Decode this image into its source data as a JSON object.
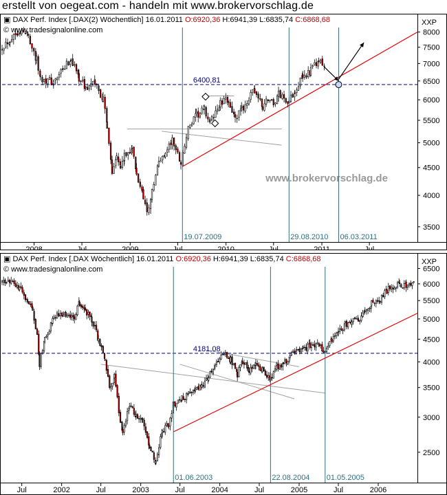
{
  "header": {
    "text": "erstellt von oegeat.com - handeln mit www.brokervorschlag.de"
  },
  "watermark": "www.brokervorschlag.de",
  "colors": {
    "up_candle": "#ffffff",
    "down_candle": "#c00000",
    "trendline": "#e00000",
    "vertical_lines": "#2e6f80",
    "reference_line": "#000080",
    "channel_lines": "#a0a0a0",
    "ohlc_red": "#c00000"
  },
  "chart_data": [
    {
      "type": "candlestick",
      "title": {
        "name": "DAX Perf. Index [.DAX(2) Wöchentlich] 16.01.2011",
        "open": "O:6920,36",
        "high": "H:6941,39",
        "low": "L:6835,74",
        "close": "C:6868,68"
      },
      "source": "www.tradesignalonline.com",
      "y_unit": "XXP",
      "y_scale": "log",
      "ylim": [
        3300,
        8300
      ],
      "y_ticks": [
        3500,
        4000,
        4500,
        5000,
        5500,
        6000,
        6500,
        7000,
        7500,
        8000
      ],
      "x_range": [
        "2007-09-01",
        "2011-12-31"
      ],
      "x_ticks": [
        {
          "date": "2008-01-01",
          "label": "2008"
        },
        {
          "date": "2008-07-01",
          "label": "Jul"
        },
        {
          "date": "2009-01-01",
          "label": "2009"
        },
        {
          "date": "2009-07-01",
          "label": "Jul"
        },
        {
          "date": "2010-01-01",
          "label": "2010"
        },
        {
          "date": "2010-07-01",
          "label": "Jul"
        },
        {
          "date": "2011-01-01",
          "label": "2011"
        },
        {
          "date": "2011-07-01",
          "label": "Jul"
        }
      ],
      "price_path": [
        [
          "2007-09-01",
          7550
        ],
        [
          "2007-10-01",
          7750
        ],
        [
          "2007-11-01",
          8050
        ],
        [
          "2007-12-10",
          7900
        ],
        [
          "2008-01-10",
          7100
        ],
        [
          "2008-01-25",
          6600
        ],
        [
          "2008-03-15",
          6450
        ],
        [
          "2008-04-20",
          6800
        ],
        [
          "2008-05-20",
          7150
        ],
        [
          "2008-06-20",
          6600
        ],
        [
          "2008-07-15",
          6300
        ],
        [
          "2008-08-20",
          6450
        ],
        [
          "2008-09-20",
          6000
        ],
        [
          "2008-10-05",
          5400
        ],
        [
          "2008-10-24",
          4400
        ],
        [
          "2008-11-10",
          4800
        ],
        [
          "2008-11-25",
          4500
        ],
        [
          "2008-12-10",
          4700
        ],
        [
          "2009-01-08",
          4900
        ],
        [
          "2009-01-25",
          4350
        ],
        [
          "2009-02-20",
          4000
        ],
        [
          "2009-03-06",
          3700
        ],
        [
          "2009-03-25",
          4050
        ],
        [
          "2009-04-20",
          4600
        ],
        [
          "2009-05-15",
          4800
        ],
        [
          "2009-06-10",
          5050
        ],
        [
          "2009-07-13",
          4600
        ],
        [
          "2009-08-10",
          5300
        ],
        [
          "2009-09-10",
          5600
        ],
        [
          "2009-10-10",
          5750
        ],
        [
          "2009-11-01",
          5450
        ],
        [
          "2009-12-10",
          5900
        ],
        [
          "2010-01-10",
          6000
        ],
        [
          "2010-02-05",
          5500
        ],
        [
          "2010-03-01",
          5750
        ],
        [
          "2010-04-20",
          6250
        ],
        [
          "2010-05-20",
          5800
        ],
        [
          "2010-06-10",
          6050
        ],
        [
          "2010-07-01",
          5900
        ],
        [
          "2010-07-20",
          6150
        ],
        [
          "2010-08-29",
          5950
        ],
        [
          "2010-09-20",
          6250
        ],
        [
          "2010-10-20",
          6600
        ],
        [
          "2010-11-20",
          6800
        ],
        [
          "2010-12-20",
          7050
        ],
        [
          "2011-01-16",
          6870
        ]
      ],
      "reference_line": {
        "value": 6400.81,
        "label": "6400,81"
      },
      "vertical_markers": [
        {
          "date": "2009-07-19",
          "label": "19.07.2009"
        },
        {
          "date": "2010-08-29",
          "label": "29.08.2010"
        },
        {
          "date": "2011-03-06",
          "label": "06.03.2011"
        }
      ],
      "trendline": {
        "from": [
          "2009-07-19",
          4520
        ],
        "to": [
          "2011-12-31",
          8000
        ]
      },
      "channel_lines": [
        {
          "from": [
            "2008-12-20",
            5300
          ],
          "to": [
            "2010-08-01",
            5300
          ]
        },
        {
          "from": [
            "2009-05-01",
            5250
          ],
          "to": [
            "2010-08-01",
            4950
          ]
        },
        {
          "from": [
            "2009-10-01",
            6100
          ],
          "to": [
            "2010-02-01",
            6100
          ]
        }
      ],
      "markers": [
        {
          "date": "2009-10-15",
          "value": 6080,
          "shape": "diamond"
        },
        {
          "date": "2009-11-20",
          "value": 5430,
          "shape": "diamond"
        },
        {
          "date": "2011-03-06",
          "value": 6400,
          "shape": "circle"
        }
      ],
      "arrows": [
        {
          "from": [
            "2011-01-10",
            6900
          ],
          "to": [
            "2011-03-06",
            6500
          ]
        },
        {
          "from": [
            "2011-03-06",
            6550
          ],
          "to": [
            "2011-06-10",
            7650
          ]
        }
      ]
    },
    {
      "type": "candlestick",
      "title": {
        "name": "DAX Perf. Index [.DAX Wöchentlich] 16.01.2011",
        "open": "O:6920,36",
        "high": "H:6941,39",
        "low": "L:6835,74",
        "close": "C:6868,68"
      },
      "source": "www.tradesignalonline.com",
      "y_unit": "XXP",
      "y_scale": "log",
      "ylim": [
        2150,
        6700
      ],
      "y_ticks": [
        2500,
        3000,
        3500,
        4000,
        4500,
        5000,
        5500,
        6000,
        6500
      ],
      "x_range": [
        "2001-04-01",
        "2006-07-01"
      ],
      "x_ticks": [
        {
          "date": "2001-07-01",
          "label": "Jul"
        },
        {
          "date": "2002-01-01",
          "label": "2002"
        },
        {
          "date": "2002-07-01",
          "label": "Jul"
        },
        {
          "date": "2003-01-01",
          "label": "2003"
        },
        {
          "date": "2003-07-01",
          "label": "Jul"
        },
        {
          "date": "2004-01-01",
          "label": "2004"
        },
        {
          "date": "2004-07-01",
          "label": "Jul"
        },
        {
          "date": "2005-01-01",
          "label": "2005"
        },
        {
          "date": "2005-07-01",
          "label": "Jul"
        },
        {
          "date": "2006-01-01",
          "label": "2006"
        }
      ],
      "price_path": [
        [
          "2001-04-01",
          6050
        ],
        [
          "2001-05-20",
          6100
        ],
        [
          "2001-06-20",
          5900
        ],
        [
          "2001-07-20",
          5600
        ],
        [
          "2001-08-20",
          5200
        ],
        [
          "2001-09-10",
          4600
        ],
        [
          "2001-09-21",
          3950
        ],
        [
          "2001-10-15",
          4500
        ],
        [
          "2001-11-20",
          4950
        ],
        [
          "2001-12-20",
          5150
        ],
        [
          "2002-01-20",
          5100
        ],
        [
          "2002-03-01",
          5000
        ],
        [
          "2002-03-25",
          5450
        ],
        [
          "2002-04-20",
          5200
        ],
        [
          "2002-05-20",
          5000
        ],
        [
          "2002-06-20",
          4500
        ],
        [
          "2002-07-20",
          4000
        ],
        [
          "2002-08-10",
          3500
        ],
        [
          "2002-09-01",
          3700
        ],
        [
          "2002-09-30",
          2900
        ],
        [
          "2002-10-10",
          2750
        ],
        [
          "2002-11-10",
          3200
        ],
        [
          "2002-12-10",
          3000
        ],
        [
          "2003-01-10",
          2950
        ],
        [
          "2003-02-10",
          2600
        ],
        [
          "2003-03-12",
          2350
        ],
        [
          "2003-04-10",
          2800
        ],
        [
          "2003-05-10",
          2900
        ],
        [
          "2003-06-01",
          3200
        ],
        [
          "2003-07-10",
          3300
        ],
        [
          "2003-08-10",
          3400
        ],
        [
          "2003-09-10",
          3450
        ],
        [
          "2003-10-10",
          3550
        ],
        [
          "2003-11-10",
          3700
        ],
        [
          "2003-12-10",
          3900
        ],
        [
          "2004-01-20",
          4150
        ],
        [
          "2004-02-20",
          4050
        ],
        [
          "2004-03-22",
          3750
        ],
        [
          "2004-04-15",
          4000
        ],
        [
          "2004-05-15",
          3850
        ],
        [
          "2004-06-15",
          4000
        ],
        [
          "2004-07-15",
          3850
        ],
        [
          "2004-08-22",
          3650
        ],
        [
          "2004-09-20",
          3900
        ],
        [
          "2004-10-20",
          3950
        ],
        [
          "2004-11-20",
          4100
        ],
        [
          "2004-12-20",
          4250
        ],
        [
          "2005-01-20",
          4300
        ],
        [
          "2005-02-20",
          4350
        ],
        [
          "2005-03-20",
          4400
        ],
        [
          "2005-05-01",
          4200
        ],
        [
          "2005-06-01",
          4500
        ],
        [
          "2005-07-01",
          4650
        ],
        [
          "2005-08-01",
          4850
        ],
        [
          "2005-09-01",
          4950
        ],
        [
          "2005-10-01",
          5000
        ],
        [
          "2005-11-01",
          5200
        ],
        [
          "2005-12-01",
          5400
        ],
        [
          "2006-01-10",
          5550
        ],
        [
          "2006-02-10",
          5800
        ],
        [
          "2006-03-10",
          5900
        ],
        [
          "2006-04-10",
          6000
        ],
        [
          "2006-05-10",
          5950
        ],
        [
          "2006-06-20",
          6050
        ]
      ],
      "reference_line": {
        "value": 4181.08,
        "label": "4181,08"
      },
      "vertical_markers": [
        {
          "date": "2003-06-01",
          "label": "01.06.2003"
        },
        {
          "date": "2004-08-22",
          "label": "22.08.2004"
        },
        {
          "date": "2005-05-01",
          "label": "01.05.2005"
        }
      ],
      "trendline": {
        "from": [
          "2003-06-01",
          2780
        ],
        "to": [
          "2006-07-01",
          5150
        ]
      },
      "channel_lines": [
        {
          "from": [
            "2002-07-01",
            3950
          ],
          "to": [
            "2005-05-01",
            3400
          ]
        },
        {
          "from": [
            "2003-07-01",
            3950
          ],
          "to": [
            "2004-12-10",
            3300
          ]
        },
        {
          "from": [
            "2003-11-01",
            4250
          ],
          "to": [
            "2005-01-01",
            3900
          ]
        }
      ],
      "markers": [],
      "arrows": []
    }
  ]
}
